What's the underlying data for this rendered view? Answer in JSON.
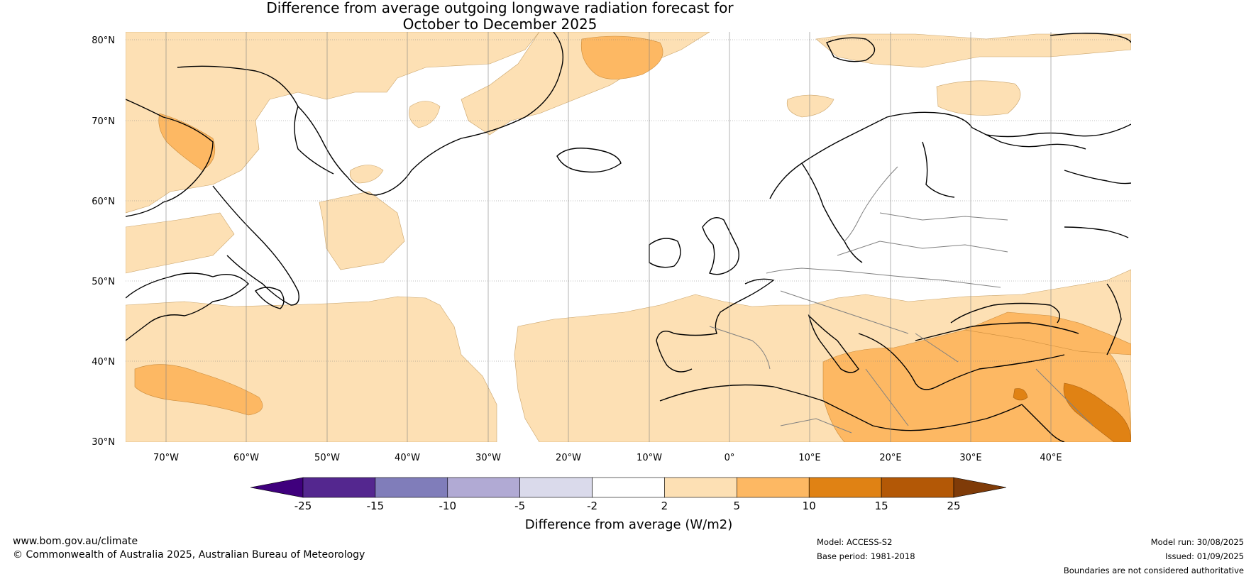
{
  "title_line1": "Difference from average outgoing longwave radiation forecast for",
  "title_line2": "October to December 2025",
  "lat_labels": [
    "80°N",
    "70°N",
    "60°N",
    "50°N",
    "40°N",
    "30°N"
  ],
  "lon_labels": [
    "70°W",
    "60°W",
    "50°W",
    "40°W",
    "30°W",
    "20°W",
    "10°W",
    "0°",
    "10°E",
    "20°E",
    "30°E",
    "40°E"
  ],
  "colorbar": {
    "levels": [
      "-25",
      "-15",
      "-10",
      "-5",
      "-2",
      "2",
      "5",
      "10",
      "15",
      "25"
    ],
    "colors": [
      "#3f007d",
      "#54278f",
      "#807dba",
      "#b1aad4",
      "#dadaeb",
      "#ffffff",
      "#fde0b4",
      "#fdb863",
      "#e08214",
      "#b35806",
      "#7f3b08"
    ],
    "title": "Difference from average (W/m2)"
  },
  "footer": {
    "website": "www.bom.gov.au/climate",
    "copyright": "© Commonwealth of Australia 2025, Australian Bureau of Meteorology",
    "model": "Model: ACCESS-S2",
    "base_period": "Base period: 1981-2018",
    "model_run": "Model run: 30/08/2025",
    "issued": "Issued: 01/09/2025",
    "disclaimer": "Boundaries are not considered authoritative"
  }
}
